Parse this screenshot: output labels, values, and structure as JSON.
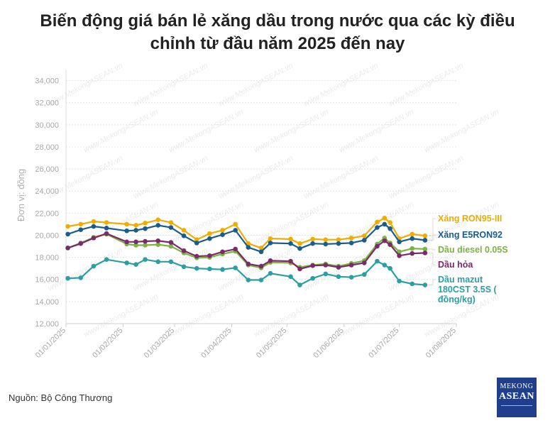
{
  "title": {
    "line1": "Biến động giá bán lẻ xăng dầu trong nước qua các kỳ điều",
    "line2": "chỉnh từ đầu năm 2025 đến nay"
  },
  "source": "Nguồn: Bộ Công Thương",
  "logo": {
    "line1": "MEKONG",
    "line2": "ASEAN"
  },
  "watermark": "www.MekongASEAN.vn",
  "chart_data": {
    "type": "line",
    "ylabel": "Đơn vị: đồng",
    "ylim": [
      12000,
      35000
    ],
    "yticks": [
      12000,
      14000,
      16000,
      18000,
      20000,
      22000,
      24000,
      26000,
      28000,
      30000,
      32000,
      34000
    ],
    "ytick_labels": [
      "12,000",
      "14,000",
      "16,000",
      "18,000",
      "20,000",
      "22,000",
      "24,000",
      "26,000",
      "28,000",
      "30,000",
      "32,000",
      "34,000"
    ],
    "xlim": [
      "2025-01-01",
      "2025-08-01"
    ],
    "xticks": [
      "2025-01-01",
      "2025-02-01",
      "2025-03-01",
      "2025-04-01",
      "2025-05-01",
      "2025-06-01",
      "2025-07-01",
      "2025-08-01"
    ],
    "xtick_labels": [
      "01/01/2025",
      "01/02/2025",
      "01/03/2025",
      "01/04/2025",
      "01/05/2025",
      "01/06/2025",
      "01/07/2025",
      "01/08/2025"
    ],
    "legend_position": "right",
    "x": [
      "2025-01-02",
      "2025-01-09",
      "2025-01-16",
      "2025-01-23",
      "2025-02-03",
      "2025-02-08",
      "2025-02-13",
      "2025-02-20",
      "2025-02-27",
      "2025-03-06",
      "2025-03-13",
      "2025-03-20",
      "2025-03-27",
      "2025-04-03",
      "2025-04-10",
      "2025-04-17",
      "2025-04-22",
      "2025-05-03",
      "2025-05-08",
      "2025-05-15",
      "2025-05-22",
      "2025-05-29",
      "2025-06-05",
      "2025-06-12",
      "2025-06-19",
      "2025-06-23",
      "2025-06-26",
      "2025-07-01",
      "2025-07-08",
      "2025-07-15"
    ],
    "series": [
      {
        "name": "Xăng RON95-III",
        "color": "#f0ad00",
        "values": [
          20800,
          21000,
          21250,
          21150,
          21000,
          20900,
          21100,
          21400,
          21150,
          20450,
          19600,
          20150,
          20450,
          21000,
          19250,
          18850,
          19700,
          19650,
          19250,
          19650,
          19600,
          19600,
          19750,
          19950,
          21200,
          21550,
          21150,
          19700,
          20100,
          19950
        ]
      },
      {
        "name": "Xăng E5RON92",
        "color": "#1b5c8f",
        "values": [
          20100,
          20500,
          20800,
          20650,
          20400,
          20450,
          20600,
          20900,
          20700,
          19950,
          19300,
          19700,
          20050,
          20450,
          18900,
          18500,
          19300,
          19250,
          18800,
          19250,
          19200,
          19250,
          19300,
          19550,
          20700,
          21000,
          20600,
          19400,
          19700,
          19550
        ]
      },
      {
        "name": "Dầu diesel 0.05S",
        "color": "#7cb342",
        "values": [
          18850,
          19300,
          19800,
          20100,
          19200,
          19100,
          19100,
          19150,
          19000,
          18400,
          17950,
          18000,
          18300,
          18550,
          17300,
          17050,
          17550,
          17500,
          17100,
          17300,
          17400,
          17200,
          17450,
          17700,
          19200,
          19750,
          19300,
          18500,
          18800,
          18750
        ]
      },
      {
        "name": "Dầu hỏa",
        "color": "#7b2a6a",
        "values": [
          18850,
          19250,
          19750,
          20150,
          19400,
          19400,
          19450,
          19500,
          19350,
          18600,
          18100,
          18150,
          18500,
          18750,
          17400,
          17200,
          17700,
          17650,
          16950,
          17250,
          17300,
          17100,
          17300,
          17500,
          19000,
          19500,
          19150,
          18150,
          18350,
          18400
        ]
      },
      {
        "name": "Dầu mazut 180CST 3.5S ( đồng/kg)",
        "color": "#2aa0a0",
        "values": [
          16100,
          16150,
          17200,
          17800,
          17500,
          17350,
          17800,
          17600,
          17600,
          17150,
          17000,
          16950,
          16900,
          17050,
          15950,
          15950,
          16550,
          16250,
          15500,
          16100,
          16500,
          16250,
          16200,
          16450,
          17650,
          17300,
          17000,
          15850,
          15600,
          15500
        ]
      }
    ]
  }
}
